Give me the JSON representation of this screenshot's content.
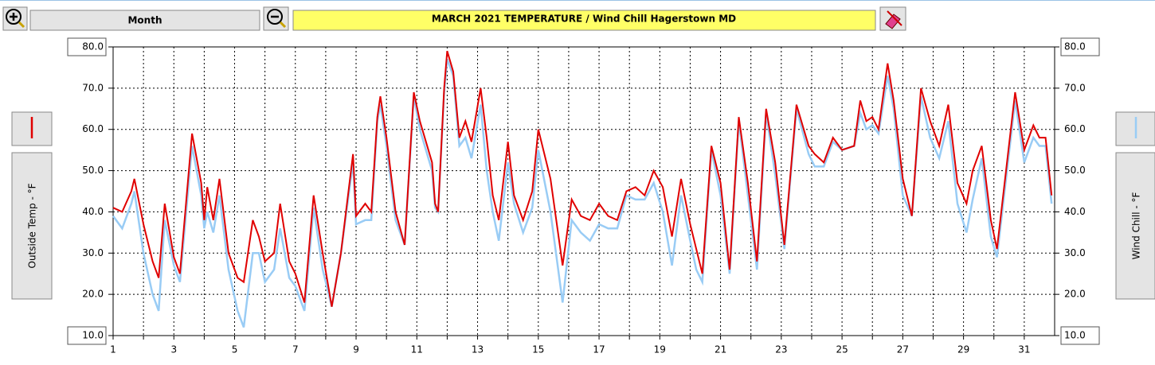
{
  "toolbar": {
    "period": "Month"
  },
  "chart_data": {
    "type": "line",
    "title": "MARCH   2021  TEMPERATURE  / Wind Chill   Hagerstown MD",
    "y_label": "Outside Temp - °F",
    "y2_label": "Wind Chill - °F",
    "x": [
      1,
      1.3,
      1.6,
      1.7,
      2.0,
      2.3,
      2.5,
      2.7,
      3.0,
      3.2,
      3.6,
      3.9,
      4.0,
      4.1,
      4.3,
      4.5,
      4.8,
      5.1,
      5.3,
      5.6,
      5.8,
      6.0,
      6.3,
      6.5,
      6.8,
      7.0,
      7.3,
      7.6,
      7.9,
      8.2,
      8.5,
      8.9,
      9.0,
      9.3,
      9.5,
      9.7,
      9.8,
      10.0,
      10.3,
      10.6,
      10.9,
      11.1,
      11.5,
      11.6,
      11.7,
      11.9,
      12.0,
      12.2,
      12.4,
      12.6,
      12.8,
      13.1,
      13.3,
      13.5,
      13.7,
      14.0,
      14.2,
      14.5,
      14.8,
      15.0,
      15.4,
      15.8,
      16.1,
      16.4,
      16.7,
      17.0,
      17.3,
      17.6,
      17.9,
      18.2,
      18.5,
      18.8,
      19.1,
      19.4,
      19.7,
      20.0,
      20.2,
      20.4,
      20.7,
      21.0,
      21.3,
      21.6,
      21.9,
      22.2,
      22.5,
      22.8,
      23.1,
      23.5,
      23.9,
      24.1,
      24.4,
      24.7,
      25.0,
      25.4,
      25.6,
      25.8,
      26.0,
      26.2,
      26.5,
      26.7,
      27.0,
      27.3,
      27.6,
      27.9,
      28.2,
      28.5,
      28.8,
      29.1,
      29.3,
      29.6,
      29.9,
      30.1,
      30.4,
      30.7,
      31.0,
      31.3,
      31.5,
      31.7,
      31.9
    ],
    "series": [
      {
        "color": "#e00000",
        "values": [
          41,
          40,
          45,
          48,
          37,
          28,
          24,
          42,
          29,
          25,
          59,
          47,
          38,
          46,
          38,
          48,
          30,
          24,
          23,
          38,
          34,
          28,
          30,
          42,
          28,
          25,
          18,
          44,
          30,
          17,
          30,
          54,
          39,
          42,
          40,
          63,
          68,
          58,
          40,
          32,
          69,
          62,
          52,
          42,
          40,
          70,
          79,
          74,
          58,
          62,
          57,
          70,
          58,
          44,
          38,
          57,
          44,
          38,
          45,
          60,
          48,
          27,
          43,
          39,
          38,
          42,
          39,
          38,
          45,
          46,
          44,
          50,
          46,
          34,
          48,
          37,
          31,
          25,
          56,
          47,
          26,
          63,
          47,
          28,
          65,
          52,
          32,
          66,
          56,
          54,
          52,
          58,
          55,
          56,
          67,
          62,
          63,
          60,
          76,
          67,
          48,
          39,
          70,
          62,
          56,
          66,
          47,
          42,
          50,
          56,
          38,
          31,
          50,
          69,
          55,
          61,
          58,
          58,
          44
        ]
      },
      {
        "color": "#99ccf5",
        "axis": "y2",
        "values": [
          39,
          36,
          42,
          45,
          30,
          20,
          16,
          38,
          27,
          23,
          56,
          44,
          36,
          40,
          35,
          44,
          26,
          16,
          12,
          30,
          30,
          23,
          26,
          36,
          24,
          22,
          16,
          41,
          26,
          17,
          30,
          52,
          37,
          38,
          38,
          62,
          66,
          56,
          38,
          32,
          68,
          60,
          50,
          41,
          40,
          69,
          77,
          73,
          56,
          58,
          53,
          66,
          50,
          40,
          33,
          52,
          42,
          35,
          41,
          55,
          40,
          18,
          38,
          35,
          33,
          37,
          36,
          36,
          44,
          43,
          43,
          47,
          40,
          27,
          44,
          33,
          26,
          23,
          55,
          44,
          25,
          62,
          44,
          26,
          64,
          49,
          31,
          65,
          54,
          51,
          51,
          57,
          55,
          56,
          64,
          60,
          61,
          59,
          73,
          65,
          44,
          39,
          68,
          58,
          53,
          62,
          42,
          35,
          43,
          53,
          34,
          29,
          48,
          67,
          52,
          58,
          56,
          56,
          42
        ]
      }
    ],
    "xlim": [
      1,
      32
    ],
    "xticks": [
      1,
      3,
      5,
      7,
      9,
      11,
      13,
      15,
      17,
      19,
      21,
      23,
      25,
      27,
      29,
      31
    ],
    "xminor": [
      2,
      4,
      6,
      8,
      10,
      12,
      14,
      16,
      18,
      20,
      22,
      24,
      26,
      28,
      30
    ],
    "ylim": [
      10,
      80
    ],
    "yticks": [
      {
        "value": 10,
        "label": "10.0"
      },
      {
        "value": 20,
        "label": "20.0"
      },
      {
        "value": 30,
        "label": "30.0"
      },
      {
        "value": 40,
        "label": "40.0"
      },
      {
        "value": 50,
        "label": "50.0"
      },
      {
        "value": 60,
        "label": "60.0"
      },
      {
        "value": 70,
        "label": "70.0"
      },
      {
        "value": 80,
        "label": "80.0"
      }
    ],
    "y2lim": [
      10,
      80
    ],
    "y2ticks": [
      {
        "value": 10,
        "label": "10.0"
      },
      {
        "value": 20,
        "label": "20.0"
      },
      {
        "value": 30,
        "label": "30.0"
      },
      {
        "value": 40,
        "label": "40.0"
      },
      {
        "value": 50,
        "label": "50.0"
      },
      {
        "value": 60,
        "label": "60.0"
      },
      {
        "value": 70,
        "label": "70.0"
      },
      {
        "value": 80,
        "label": "80.0"
      }
    ],
    "grid": true
  }
}
